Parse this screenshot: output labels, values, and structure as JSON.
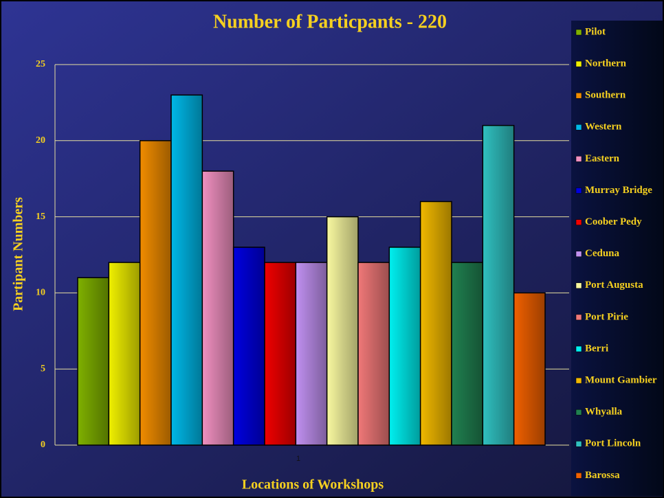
{
  "chart_data": {
    "type": "bar",
    "title": "Number of Particpants - 220",
    "xlabel": "Locations of Workshops",
    "ylabel": "Partipant Numbers",
    "categories": [
      "1"
    ],
    "series": [
      {
        "name": "Pilot",
        "color": "#7fb000",
        "values": [
          11
        ]
      },
      {
        "name": "Northern",
        "color": "#f0f000",
        "values": [
          12
        ]
      },
      {
        "name": "Southern",
        "color": "#f08c00",
        "values": [
          20
        ]
      },
      {
        "name": "Western",
        "color": "#00b8e8",
        "values": [
          23
        ]
      },
      {
        "name": "Eastern",
        "color": "#f090c0",
        "values": [
          18
        ]
      },
      {
        "name": "Murray Bridge",
        "color": "#0000e0",
        "values": [
          13
        ]
      },
      {
        "name": "Coober Pedy",
        "color": "#f00000",
        "values": [
          12
        ]
      },
      {
        "name": "Ceduna",
        "color": "#c090f0",
        "values": [
          12
        ]
      },
      {
        "name": "Port Augusta",
        "color": "#f8f8a0",
        "values": [
          15
        ]
      },
      {
        "name": "Port Pirie",
        "color": "#f07878",
        "values": [
          12
        ]
      },
      {
        "name": "Berri",
        "color": "#00f0f0",
        "values": [
          13
        ]
      },
      {
        "name": "Mount Gambier",
        "color": "#f0b800",
        "values": [
          16
        ]
      },
      {
        "name": "Whyalla",
        "color": "#208050",
        "values": [
          12
        ]
      },
      {
        "name": "Port Lincoln",
        "color": "#30c0c0",
        "values": [
          21
        ]
      },
      {
        "name": "Barossa",
        "color": "#f06000",
        "values": [
          10
        ]
      }
    ],
    "ylim": [
      0,
      25
    ],
    "yticks": [
      0,
      5,
      10,
      15,
      20,
      25
    ],
    "grid": true,
    "legend": "right"
  }
}
